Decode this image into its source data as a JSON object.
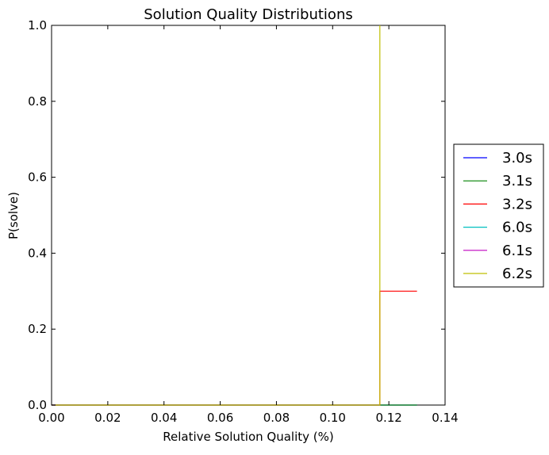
{
  "chart_data": {
    "type": "line",
    "title": "Solution Quality Distributions",
    "xlabel": "Relative Solution Quality (%)",
    "ylabel": "P(solve)",
    "xlim": [
      0.0,
      0.14
    ],
    "ylim": [
      0.0,
      1.0
    ],
    "xticks": [
      "0.00",
      "0.02",
      "0.04",
      "0.06",
      "0.08",
      "0.10",
      "0.12",
      "0.14"
    ],
    "yticks": [
      "0.0",
      "0.2",
      "0.4",
      "0.6",
      "0.8",
      "1.0"
    ],
    "grid": false,
    "legend_position": "right-outside",
    "series": [
      {
        "name": "3.0s",
        "color": "#0000ff",
        "x": [
          0.0,
          0.13
        ],
        "y": [
          0.0,
          0.0
        ]
      },
      {
        "name": "3.1s",
        "color": "#008000",
        "x": [
          0.0,
          0.13
        ],
        "y": [
          0.0,
          0.0
        ]
      },
      {
        "name": "3.2s",
        "color": "#ff0000",
        "x": [
          0.0,
          0.1168,
          0.1168,
          0.13
        ],
        "y": [
          0.0,
          0.0,
          0.3,
          0.3
        ]
      },
      {
        "name": "6.0s",
        "color": "#00bfbf",
        "x": [
          0.0,
          0.1168
        ],
        "y": [
          0.0,
          0.0
        ]
      },
      {
        "name": "6.1s",
        "color": "#bf00bf",
        "x": [
          0.0,
          0.1168
        ],
        "y": [
          0.0,
          0.0
        ]
      },
      {
        "name": "6.2s",
        "color": "#bfbf00",
        "x": [
          0.0,
          0.1168,
          0.1168
        ],
        "y": [
          0.0,
          0.0,
          1.0
        ]
      }
    ]
  }
}
